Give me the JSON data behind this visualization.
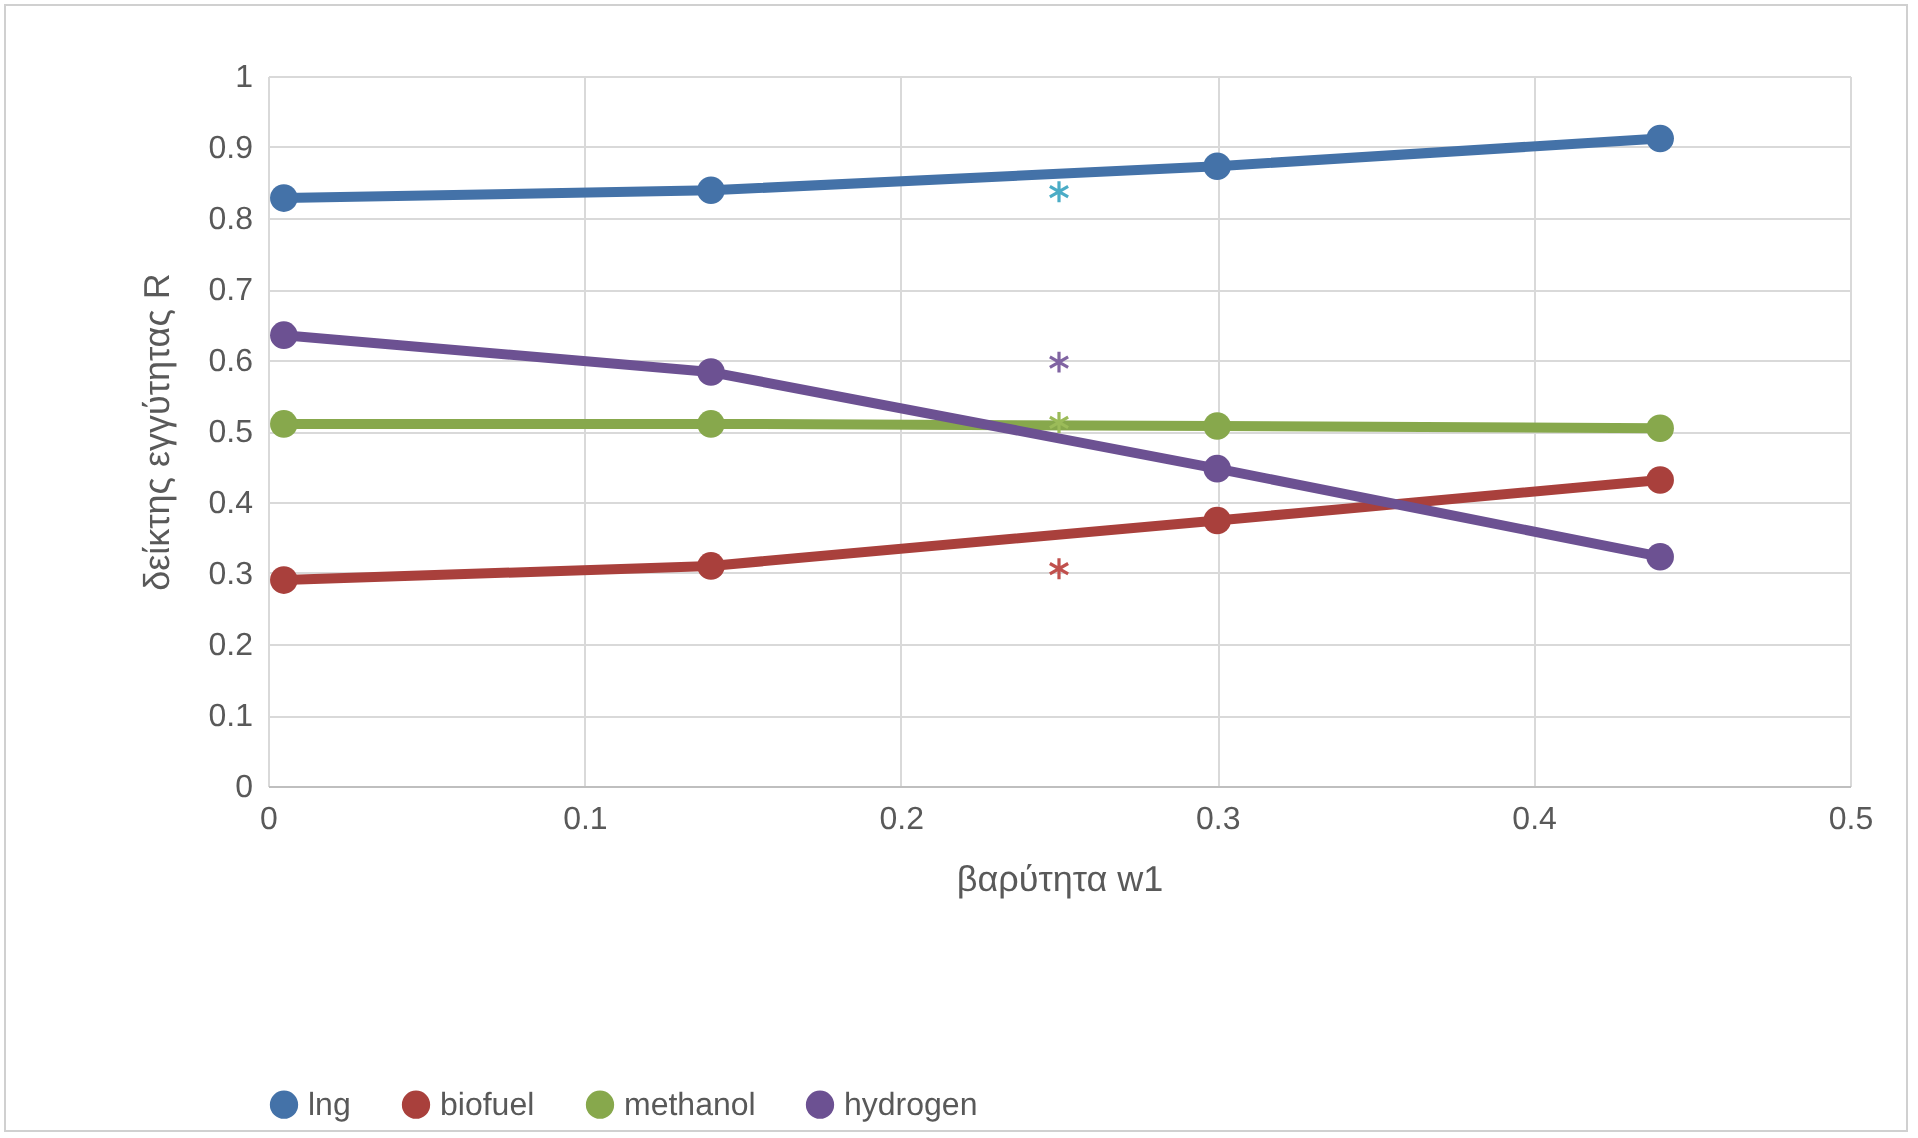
{
  "chart_data": {
    "type": "line",
    "xlabel": "βαρύτητα w1",
    "ylabel": "δείκτης εγγύτητας R",
    "xlim": [
      0,
      0.5
    ],
    "xticks": [
      0,
      0.1,
      0.2,
      0.3,
      0.4,
      0.5
    ],
    "ylim": [
      0,
      1
    ],
    "yticks": [
      0,
      0.1,
      0.2,
      0.3,
      0.4,
      0.5,
      0.6,
      0.7,
      0.8,
      0.9,
      1
    ],
    "grid": true,
    "legend": "bottom",
    "marker": "circle",
    "line_style": "solid",
    "series": [
      {
        "name": "lng",
        "color": "#4472a8",
        "x": [
          0.005,
          0.14,
          0.3,
          0.44
        ],
        "values": [
          0.828,
          0.839,
          0.873,
          0.912
        ]
      },
      {
        "name": "biofuel",
        "color": "#a9403c",
        "x": [
          0.005,
          0.14,
          0.3,
          0.44
        ],
        "values": [
          0.29,
          0.31,
          0.374,
          0.431
        ]
      },
      {
        "name": "methanol",
        "color": "#87a84c",
        "x": [
          0.005,
          0.14,
          0.3,
          0.44
        ],
        "values": [
          0.51,
          0.51,
          0.507,
          0.504
        ]
      },
      {
        "name": "hydrogen",
        "color": "#6c5192",
        "x": [
          0.005,
          0.14,
          0.3,
          0.44
        ],
        "values": [
          0.635,
          0.583,
          0.447,
          0.323
        ]
      },
      {
        "type": "scatter",
        "marker": "cross",
        "color": "#4bacc6",
        "x": [
          0.25
        ],
        "values": [
          0.837
        ]
      },
      {
        "type": "scatter",
        "marker": "cross",
        "color": "#8064a2",
        "x": [
          0.25
        ],
        "values": [
          0.597
        ]
      },
      {
        "type": "scatter",
        "marker": "cross",
        "color": "#9bbb59",
        "x": [
          0.25
        ],
        "values": [
          0.512
        ]
      },
      {
        "type": "scatter",
        "marker": "cross",
        "color": "#c0504d",
        "x": [
          0.25
        ],
        "values": [
          0.306
        ]
      }
    ]
  }
}
